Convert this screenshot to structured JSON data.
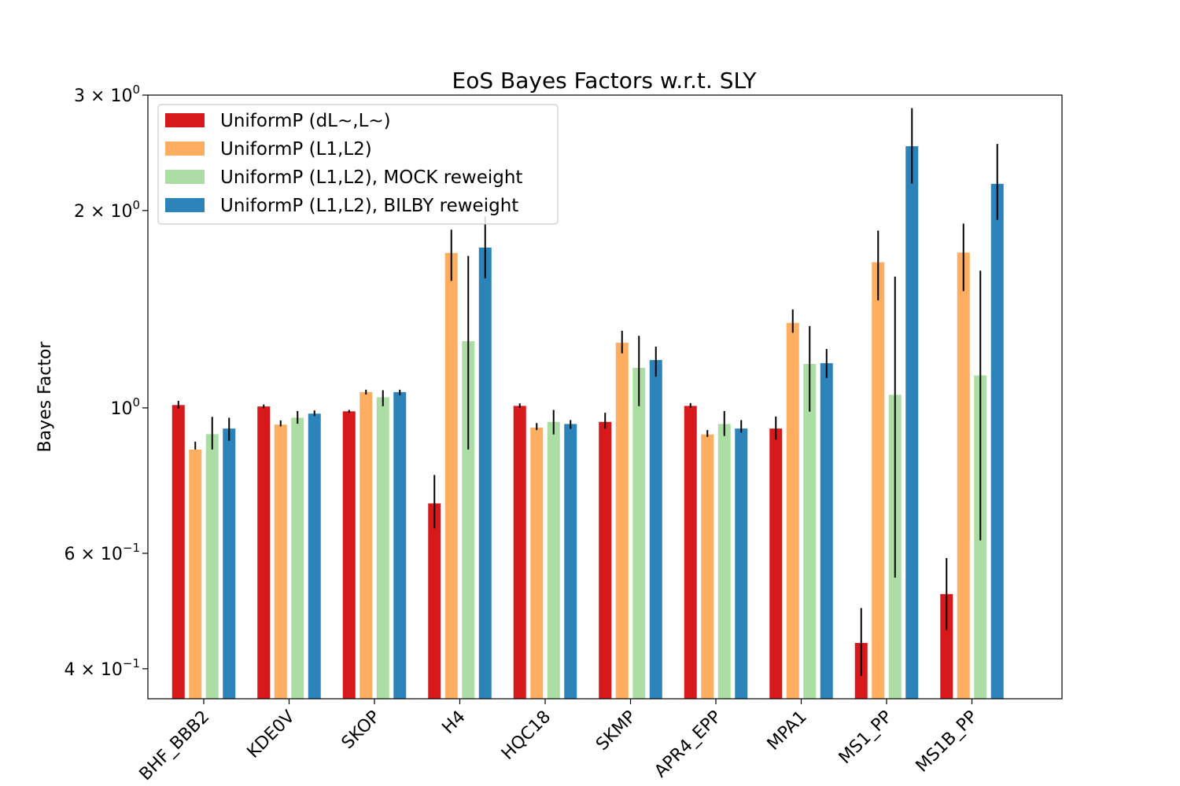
{
  "chart_data": {
    "type": "bar",
    "title": "EoS Bayes Factors w.r.t. SLY",
    "xlabel": "",
    "ylabel": "Bayes Factor",
    "yscale": "log",
    "ylim": [
      0.36,
      3.0
    ],
    "grid": false,
    "legend_position": "top-left",
    "categories": [
      "BHF_BBB2",
      "KDE0V",
      "SKOP",
      "H4",
      "HQC18",
      "SKMP",
      "APR4_EPP",
      "MPA1",
      "MS1_PP",
      "MS1B_PP"
    ],
    "yticks": [
      {
        "value": 3.0,
        "mantissa": "3",
        "exponent": "0"
      },
      {
        "value": 2.0,
        "mantissa": "2",
        "exponent": "0"
      },
      {
        "value": 1.0,
        "mantissa": "",
        "exponent": "0"
      },
      {
        "value": 0.6,
        "mantissa": "6",
        "exponent": "−1"
      },
      {
        "value": 0.4,
        "mantissa": "4",
        "exponent": "−1"
      }
    ],
    "series": [
      {
        "name": "UniformP (dL~,L~)",
        "color": "#d7191c",
        "values": [
          1.01,
          1.005,
          0.988,
          0.715,
          1.007,
          0.952,
          1.007,
          0.93,
          0.438,
          0.52
        ],
        "err_low": [
          0.998,
          0.999,
          0.983,
          0.655,
          1.0,
          0.93,
          1.0,
          0.895,
          0.39,
          0.458
        ],
        "err_high": [
          1.025,
          1.012,
          0.993,
          0.79,
          1.016,
          0.983,
          1.017,
          0.97,
          0.495,
          0.59
        ]
      },
      {
        "name": "UniformP (L1,L2)",
        "color": "#fdae61",
        "values": [
          0.864,
          0.943,
          1.057,
          1.723,
          0.933,
          1.257,
          0.911,
          1.348,
          1.668,
          1.726
        ],
        "err_low": [
          0.864,
          0.937,
          1.048,
          1.562,
          0.925,
          1.211,
          0.903,
          1.302,
          1.459,
          1.507
        ],
        "err_high": [
          0.888,
          0.957,
          1.066,
          1.87,
          0.948,
          1.311,
          0.925,
          1.413,
          1.864,
          1.91
        ]
      },
      {
        "name": "UniformP (L1,L2), MOCK reweight",
        "color": "#abdda4",
        "values": [
          0.912,
          0.966,
          1.038,
          1.264,
          0.952,
          1.151,
          0.945,
          1.167,
          1.047,
          1.121
        ],
        "err_low": [
          0.864,
          0.946,
          1.006,
          0.864,
          0.911,
          1.006,
          0.906,
          0.987,
          0.551,
          0.628
        ],
        "err_high": [
          0.969,
          0.989,
          1.064,
          1.705,
          0.993,
          1.288,
          0.989,
          1.333,
          1.586,
          1.619
        ]
      },
      {
        "name": "UniformP (L1,L2), BILBY reweight",
        "color": "#2b83ba",
        "values": [
          0.93,
          0.98,
          1.057,
          1.756,
          0.945,
          1.183,
          0.93,
          1.17,
          2.507,
          2.197
        ],
        "err_low": [
          0.891,
          0.972,
          1.045,
          1.576,
          0.929,
          1.116,
          0.917,
          1.111,
          2.199,
          1.936
        ],
        "err_high": [
          0.966,
          0.991,
          1.066,
          1.96,
          0.958,
          1.24,
          0.958,
          1.23,
          2.865,
          2.527
        ]
      }
    ]
  }
}
